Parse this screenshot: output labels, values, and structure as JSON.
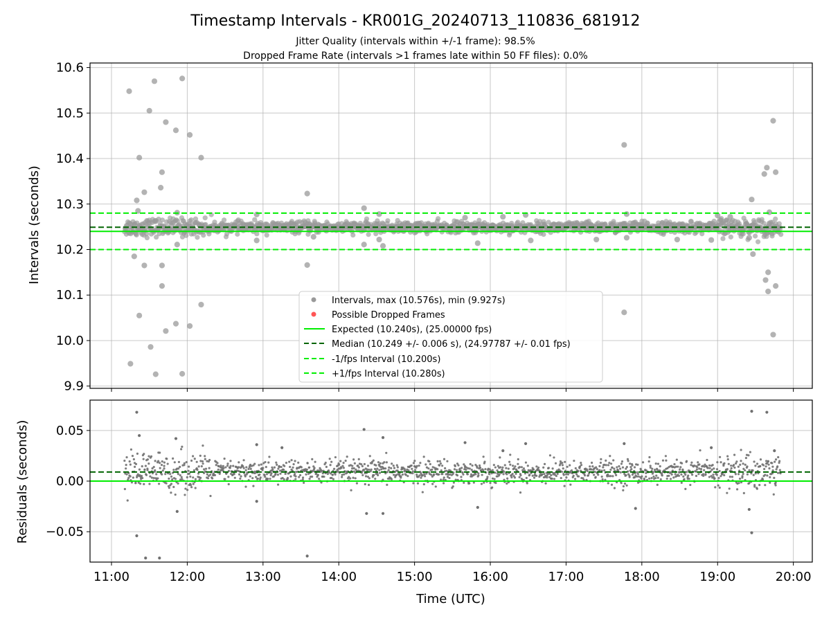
{
  "chart_data": [
    {
      "type": "scatter",
      "title": "Timestamp Intervals - KR001G_20240713_110836_681912",
      "subtitle_lines": [
        "Jitter Quality (intervals within +/-1 frame): 98.5%",
        "Dropped Frame Rate (intervals >1 frames late within 50 FF files): 0.0%"
      ],
      "xlabel": "",
      "ylabel": "Intervals (seconds)",
      "xlim": [
        "10:43",
        "20:15"
      ],
      "ylim": [
        9.895,
        10.61
      ],
      "yticks": [
        9.9,
        10.0,
        10.1,
        10.2,
        10.3,
        10.4,
        10.5,
        10.6
      ],
      "ytick_labels": [
        "9.9",
        "10.0",
        "10.1",
        "10.2",
        "10.3",
        "10.4",
        "10.5",
        "10.6"
      ],
      "grid": true,
      "legend_position": "lower-center",
      "legend": [
        "Intervals, max (10.576s), min (9.927s)",
        "Possible Dropped Frames",
        "Expected (10.240s), (25.00000 fps)",
        "Median (10.249 +/- 0.006 s), (24.97787 +/- 0.01 fps)",
        "-1/fps Interval (10.200s)",
        "+1/fps Interval (10.280s)"
      ],
      "reference_lines": [
        {
          "name": "Expected",
          "y": 10.24,
          "color": "#00ee00",
          "style": "solid"
        },
        {
          "name": "Median",
          "y": 10.249,
          "color": "#006400",
          "style": "dashed"
        },
        {
          "name": "-1/fps Interval",
          "y": 10.2,
          "color": "#00ee00",
          "style": "dashed"
        },
        {
          "name": "+1/fps Interval",
          "y": 10.28,
          "color": "#00ee00",
          "style": "dashed"
        }
      ],
      "series": [
        {
          "name": "Intervals",
          "color": "#999999",
          "points": [
            [
              "11:14",
              10.548
            ],
            [
              "11:15",
              9.949
            ],
            [
              "11:18",
              10.185
            ],
            [
              "11:20",
              10.308
            ],
            [
              "11:21",
              10.285
            ],
            [
              "11:22",
              10.402
            ],
            [
              "11:22",
              10.055
            ],
            [
              "11:26",
              10.326
            ],
            [
              "11:26",
              10.165
            ],
            [
              "11:30",
              10.505
            ],
            [
              "11:31",
              9.986
            ],
            [
              "11:34",
              10.57
            ],
            [
              "11:35",
              9.926
            ],
            [
              "11:39",
              10.336
            ],
            [
              "11:40",
              10.37
            ],
            [
              "11:40",
              10.165
            ],
            [
              "11:40",
              10.12
            ],
            [
              "11:43",
              10.48
            ],
            [
              "11:43",
              10.021
            ],
            [
              "11:51",
              10.462
            ],
            [
              "11:51",
              10.037
            ],
            [
              "11:52",
              10.281
            ],
            [
              "11:52",
              10.211
            ],
            [
              "11:56",
              10.576
            ],
            [
              "11:56",
              9.927
            ],
            [
              "12:02",
              10.452
            ],
            [
              "12:02",
              10.032
            ],
            [
              "12:11",
              10.402
            ],
            [
              "12:11",
              10.079
            ],
            [
              "12:55",
              10.22
            ],
            [
              "12:55",
              10.277
            ],
            [
              "13:35",
              10.323
            ],
            [
              "13:35",
              10.166
            ],
            [
              "13:40",
              10.228
            ],
            [
              "14:20",
              10.291
            ],
            [
              "14:20",
              10.211
            ],
            [
              "14:32",
              10.278
            ],
            [
              "14:32",
              10.222
            ],
            [
              "14:35",
              10.208
            ],
            [
              "15:40",
              10.27
            ],
            [
              "15:50",
              10.214
            ],
            [
              "16:10",
              10.272
            ],
            [
              "16:28",
              10.276
            ],
            [
              "16:32",
              10.22
            ],
            [
              "17:24",
              10.222
            ],
            [
              "17:46",
              10.43
            ],
            [
              "17:46",
              10.062
            ],
            [
              "17:48",
              10.278
            ],
            [
              "17:48",
              10.226
            ],
            [
              "18:28",
              10.222
            ],
            [
              "18:55",
              10.221
            ],
            [
              "19:00",
              10.275
            ],
            [
              "19:10",
              10.272
            ],
            [
              "19:25",
              10.226
            ],
            [
              "19:27",
              10.31
            ],
            [
              "19:28",
              10.19
            ],
            [
              "19:37",
              10.366
            ],
            [
              "19:38",
              10.133
            ],
            [
              "19:39",
              10.38
            ],
            [
              "19:40",
              10.108
            ],
            [
              "19:40",
              10.15
            ],
            [
              "19:41",
              10.282
            ],
            [
              "19:44",
              10.483
            ],
            [
              "19:44",
              10.013
            ],
            [
              "19:46",
              10.37
            ],
            [
              "19:46",
              10.12
            ]
          ]
        },
        {
          "name": "Possible Dropped Frames",
          "color": "#ff3333",
          "points": []
        }
      ]
    },
    {
      "type": "scatter",
      "xlabel": "Time (UTC)",
      "ylabel": "Residuals (seconds)",
      "xlim": [
        "10:43",
        "20:15"
      ],
      "ylim": [
        -0.08,
        0.08
      ],
      "yticks": [
        -0.05,
        0.0,
        0.05
      ],
      "ytick_labels": [
        "−0.05",
        "0.00",
        "0.05"
      ],
      "xticks": [
        "11:00",
        "12:00",
        "13:00",
        "14:00",
        "15:00",
        "16:00",
        "17:00",
        "18:00",
        "19:00",
        "20:00"
      ],
      "grid": true,
      "reference_lines": [
        {
          "name": "Median residual",
          "y": 0.009,
          "color": "#006400",
          "style": "dashed"
        },
        {
          "name": "Zero",
          "y": 0.0,
          "color": "#00ee00",
          "style": "solid"
        }
      ],
      "series": [
        {
          "name": "Residuals",
          "color": "#707070",
          "points": [
            [
              "11:20",
              0.068
            ],
            [
              "11:20",
              -0.054
            ],
            [
              "11:22",
              0.045
            ],
            [
              "11:27",
              -0.076
            ],
            [
              "11:38",
              -0.076
            ],
            [
              "11:51",
              0.042
            ],
            [
              "11:52",
              -0.03
            ],
            [
              "12:55",
              0.036
            ],
            [
              "12:55",
              -0.02
            ],
            [
              "13:15",
              0.033
            ],
            [
              "13:35",
              -0.074
            ],
            [
              "14:20",
              0.051
            ],
            [
              "14:22",
              -0.032
            ],
            [
              "14:35",
              0.043
            ],
            [
              "14:35",
              -0.032
            ],
            [
              "15:40",
              0.038
            ],
            [
              "15:50",
              -0.026
            ],
            [
              "16:10",
              0.03
            ],
            [
              "16:28",
              0.037
            ],
            [
              "17:46",
              0.037
            ],
            [
              "17:55",
              -0.027
            ],
            [
              "18:55",
              0.033
            ],
            [
              "19:25",
              -0.028
            ],
            [
              "19:27",
              0.069
            ],
            [
              "19:27",
              -0.051
            ],
            [
              "19:39",
              0.068
            ],
            [
              "19:45",
              0.03
            ]
          ]
        }
      ]
    }
  ]
}
